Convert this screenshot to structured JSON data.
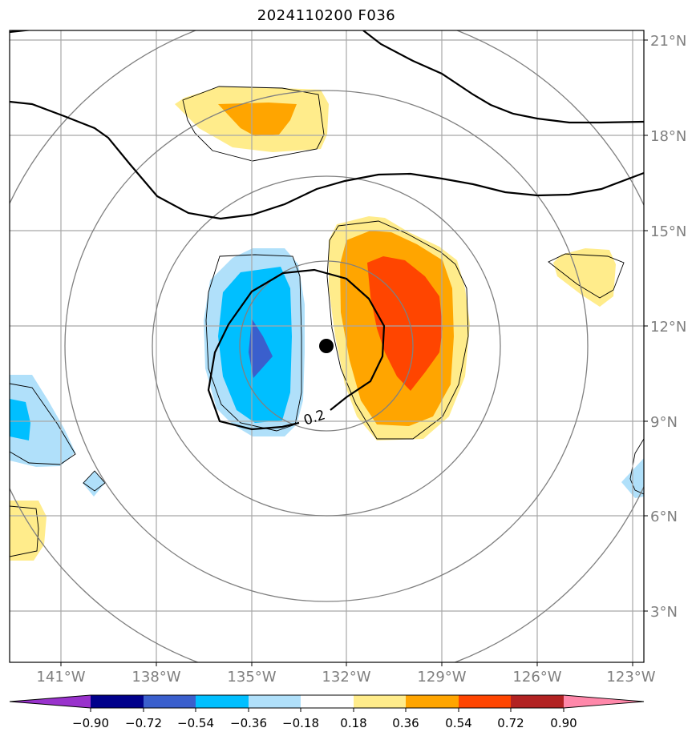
{
  "title": "2024110200 F036",
  "map": {
    "lat_labels": [
      "21°N",
      "18°N",
      "15°N",
      "12°N",
      "9°N",
      "6°N",
      "3°N"
    ],
    "lon_labels": [
      "141°W",
      "138°W",
      "135°W",
      "132°W",
      "129°W",
      "126°W",
      "123°W"
    ],
    "contour_label": "0.2",
    "center_marker": "storm-center"
  },
  "colorbar": {
    "ticks": [
      "−0.90",
      "−0.72",
      "−0.54",
      "−0.36",
      "−0.18",
      "0.18",
      "0.36",
      "0.54",
      "0.72",
      "0.90"
    ],
    "colors": [
      "#9932cc",
      "#00008b",
      "#3a5fcd",
      "#00bfff",
      "#b0e0fa",
      "#ffffff",
      "#ffec8b",
      "#ffa500",
      "#ff4500",
      "#b22222",
      "#ff88aa"
    ]
  }
}
